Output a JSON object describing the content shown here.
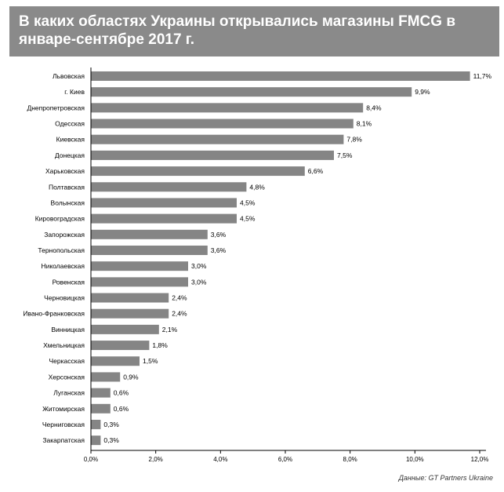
{
  "title": "В каких областях Украины открывались магазины FMCG в январе-сентябре 2017 г.",
  "source_note": "Данные: GT Partners Ukraine",
  "colors": {
    "bar": "#858585",
    "title_bg": "#8a8a8a",
    "axis": "#000000",
    "text": "#000000"
  },
  "chart_data": {
    "type": "bar",
    "orientation": "horizontal",
    "title": "В каких областях Украины открывались магазины FMCG в январе-сентябре 2017 г.",
    "xlabel": "",
    "ylabel": "",
    "xlim": [
      0,
      12
    ],
    "x_ticks": [
      "0,0%",
      "2,0%",
      "4,0%",
      "6,0%",
      "8,0%",
      "10,0%",
      "12,0%"
    ],
    "grid": false,
    "legend": "none",
    "categories": [
      "Львовская",
      "г. Киев",
      "Днепропетровская",
      "Одесская",
      "Киевская",
      "Донецкая",
      "Харьковская",
      "Полтавская",
      "Волынская",
      "Кировоградская",
      "Запорожская",
      "Тернопольская",
      "Николаевская",
      "Ровенская",
      "Черновицкая",
      "Ивано-Франковская",
      "Винницкая",
      "Хмельницкая",
      "Черкасская",
      "Херсонская",
      "Луганская",
      "Житомирская",
      "Черниговская",
      "Закарпатская"
    ],
    "values": [
      11.7,
      9.9,
      8.4,
      8.1,
      7.8,
      7.5,
      6.6,
      4.8,
      4.5,
      4.5,
      3.6,
      3.6,
      3.0,
      3.0,
      2.4,
      2.4,
      2.1,
      1.8,
      1.5,
      0.9,
      0.6,
      0.6,
      0.3,
      0.3
    ],
    "value_labels": [
      "11,7%",
      "9,9%",
      "8,4%",
      "8,1%",
      "7,8%",
      "7,5%",
      "6,6%",
      "4,8%",
      "4,5%",
      "4,5%",
      "3,6%",
      "3,6%",
      "3,0%",
      "3,0%",
      "2,4%",
      "2,4%",
      "2,1%",
      "1,8%",
      "1,5%",
      "0,9%",
      "0,6%",
      "0,6%",
      "0,3%",
      "0,3%"
    ]
  }
}
